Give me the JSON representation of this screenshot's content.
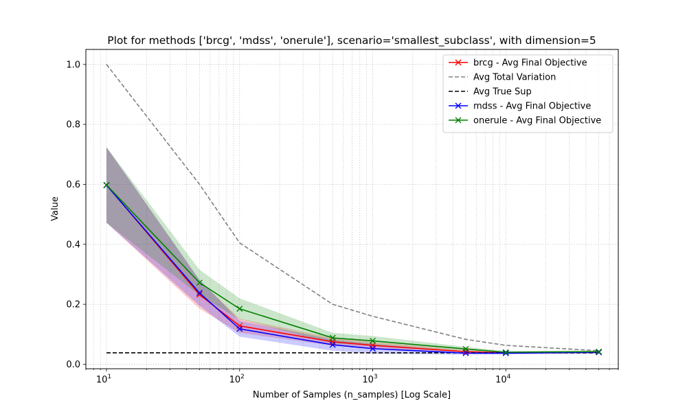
{
  "chart_data": {
    "type": "line",
    "title": "Plot for methods ['brcg', 'mdss', 'onerule'], scenario='smallest_subclass',  with dimension=5",
    "xlabel": "Number of Samples (n_samples) [Log Scale]",
    "ylabel": "Value",
    "x_scale": "log",
    "xlim": [
      7,
      70000
    ],
    "ylim": [
      -0.015,
      1.05
    ],
    "x_ticks": [
      {
        "value": 10,
        "base": "10",
        "exp": "1"
      },
      {
        "value": 100,
        "base": "10",
        "exp": "2"
      },
      {
        "value": 1000,
        "base": "10",
        "exp": "3"
      },
      {
        "value": 10000,
        "base": "10",
        "exp": "4"
      }
    ],
    "y_ticks": [
      "0.0",
      "0.2",
      "0.4",
      "0.6",
      "0.8",
      "1.0"
    ],
    "grid": true,
    "legend_position": "top-right",
    "x": [
      10,
      50,
      100,
      500,
      1000,
      5000,
      10000,
      50000
    ],
    "series": [
      {
        "name": "brcg - Avg Final Objective",
        "color": "#ff0000",
        "style": "solid",
        "marker": "x",
        "values": [
          0.598,
          0.232,
          0.128,
          0.075,
          0.063,
          0.042,
          0.038,
          0.04
        ],
        "band_low": [
          0.472,
          0.185,
          0.105,
          0.062,
          0.052,
          0.036,
          0.034,
          0.036
        ],
        "band_high": [
          0.724,
          0.28,
          0.152,
          0.088,
          0.075,
          0.048,
          0.042,
          0.044
        ],
        "band_color": "#ff0000"
      },
      {
        "name": "Avg Total Variation",
        "color": "#808080",
        "style": "dashed",
        "marker": "none",
        "values": [
          1.0,
          0.6,
          0.405,
          0.2,
          0.16,
          0.083,
          0.063,
          0.045
        ]
      },
      {
        "name": "Avg True Sup",
        "color": "#000000",
        "style": "dashed",
        "marker": "none",
        "values": [
          0.038,
          0.038,
          0.038,
          0.038,
          0.038,
          0.038,
          0.038,
          0.038
        ]
      },
      {
        "name": "mdss - Avg Final Objective",
        "color": "#0000ff",
        "style": "solid",
        "marker": "x",
        "values": [
          0.597,
          0.238,
          0.118,
          0.065,
          0.052,
          0.037,
          0.037,
          0.04
        ],
        "band_low": [
          0.472,
          0.195,
          0.092,
          0.045,
          0.035,
          0.032,
          0.033,
          0.036
        ],
        "band_high": [
          0.724,
          0.282,
          0.145,
          0.082,
          0.068,
          0.043,
          0.041,
          0.044
        ],
        "band_color": "#0000ff"
      },
      {
        "name": "onerule - Avg Final Objective",
        "color": "#008000",
        "style": "solid",
        "marker": "x",
        "values": [
          0.598,
          0.272,
          0.185,
          0.088,
          0.078,
          0.051,
          0.04,
          0.042
        ],
        "band_low": [
          0.472,
          0.23,
          0.15,
          0.07,
          0.062,
          0.044,
          0.036,
          0.038
        ],
        "band_high": [
          0.724,
          0.315,
          0.22,
          0.105,
          0.094,
          0.058,
          0.044,
          0.046
        ],
        "band_color": "#008000"
      }
    ]
  }
}
